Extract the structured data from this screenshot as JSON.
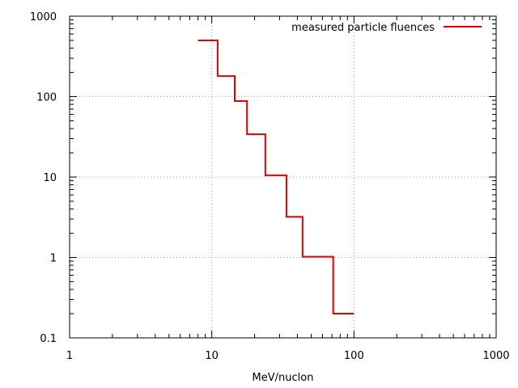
{
  "chart_data": {
    "type": "line",
    "step": true,
    "xlabel": "MeV/nuclon",
    "ylabel": "",
    "xscale": "log",
    "yscale": "log",
    "xlim": [
      1,
      1000
    ],
    "ylim": [
      0.1,
      1000
    ],
    "grid": true,
    "legend_position": "top-right",
    "xticks": [
      {
        "value": 1,
        "label": "1"
      },
      {
        "value": 10,
        "label": "10"
      },
      {
        "value": 100,
        "label": "100"
      },
      {
        "value": 1000,
        "label": "1000"
      }
    ],
    "yticks": [
      {
        "value": 0.1,
        "label": "0.1"
      },
      {
        "value": 1,
        "label": "1"
      },
      {
        "value": 10,
        "label": "10"
      },
      {
        "value": 100,
        "label": "100"
      },
      {
        "value": 1000,
        "label": "1000"
      }
    ],
    "series": [
      {
        "name": "measured particle fluences",
        "color": "#e00000",
        "bins": [
          {
            "x0": 8,
            "x1": 11,
            "y": 500
          },
          {
            "x0": 11,
            "x1": 14.5,
            "y": 180
          },
          {
            "x0": 14.5,
            "x1": 17.7,
            "y": 88
          },
          {
            "x0": 17.7,
            "x1": 23.8,
            "y": 34
          },
          {
            "x0": 23.8,
            "x1": 33.5,
            "y": 10.5
          },
          {
            "x0": 33.5,
            "x1": 43.5,
            "y": 3.2
          },
          {
            "x0": 43.5,
            "x1": 71.5,
            "y": 1.02
          },
          {
            "x0": 71.5,
            "x1": 100,
            "y": 0.2
          }
        ]
      }
    ]
  }
}
